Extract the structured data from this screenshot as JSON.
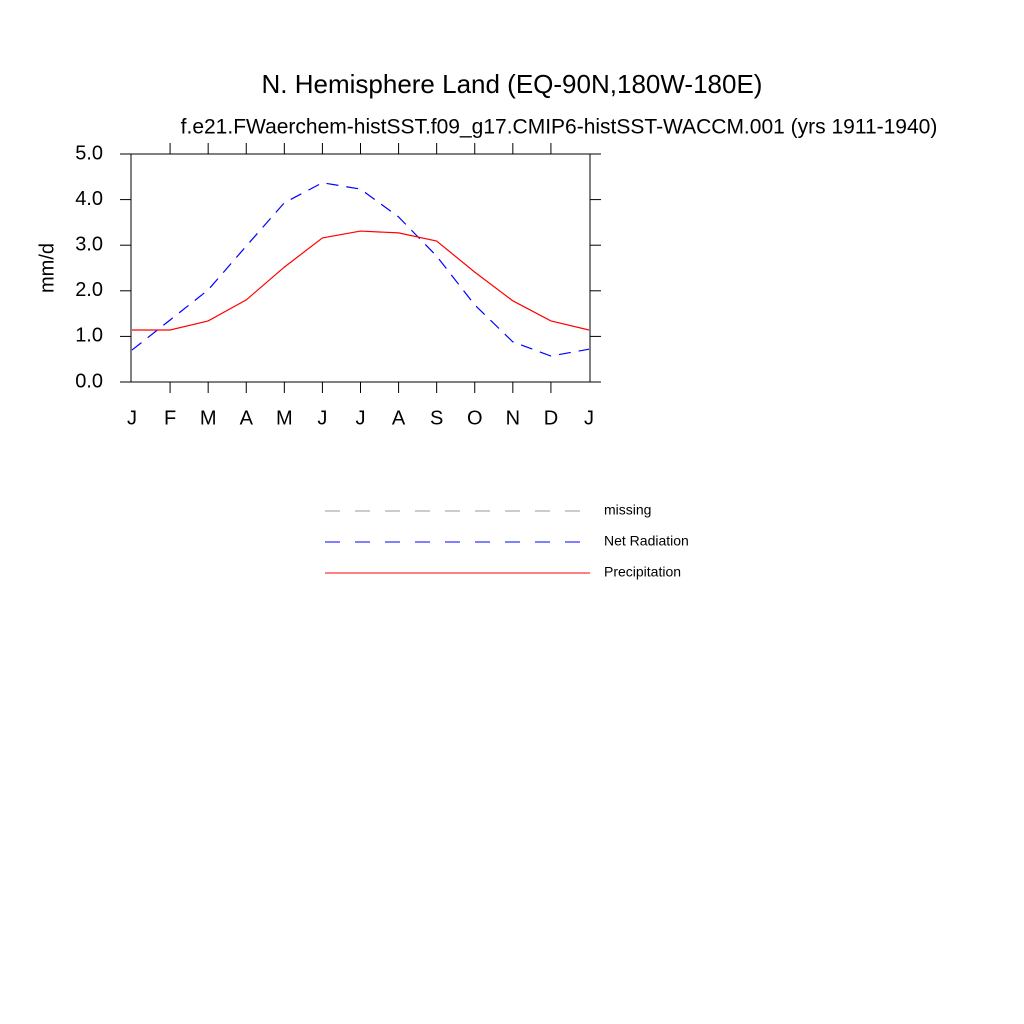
{
  "chart_data": {
    "type": "line",
    "title": "N. Hemisphere Land (EQ-90N,180W-180E)",
    "subtitle": "f.e21.FWaerchem-histSST.f09_g17.CMIP6-histSST-WACCM.001 (yrs 1911-1940)",
    "y_label": "mm/d",
    "categories": [
      "J",
      "F",
      "M",
      "A",
      "M",
      "J",
      "J",
      "A",
      "S",
      "O",
      "N",
      "D",
      "J"
    ],
    "series": [
      {
        "name": "missing",
        "color": "#999999",
        "dash": true,
        "values": [
          null,
          null,
          null,
          null,
          null,
          null,
          null,
          null,
          null,
          null,
          null,
          null,
          null
        ]
      },
      {
        "name": "Net Radiation",
        "color": "#0000ff",
        "dash": true,
        "values": [
          0.7,
          1.36,
          2.02,
          2.98,
          3.93,
          4.37,
          4.23,
          3.62,
          2.76,
          1.69,
          0.88,
          0.57,
          0.72
        ]
      },
      {
        "name": "Precipitation",
        "color": "#ff0000",
        "dash": false,
        "values": [
          1.14,
          1.14,
          1.34,
          1.8,
          2.52,
          3.16,
          3.31,
          3.27,
          3.09,
          2.41,
          1.78,
          1.34,
          1.14
        ]
      }
    ],
    "ylim": [
      0,
      5
    ],
    "yticks": [
      {
        "value": 0,
        "label": "0.0"
      },
      {
        "value": 1,
        "label": "1.0"
      },
      {
        "value": 2,
        "label": "2.0"
      },
      {
        "value": 3,
        "label": "3.0"
      },
      {
        "value": 4,
        "label": "4.0"
      },
      {
        "value": 5,
        "label": "5.0"
      }
    ],
    "grid": false
  }
}
